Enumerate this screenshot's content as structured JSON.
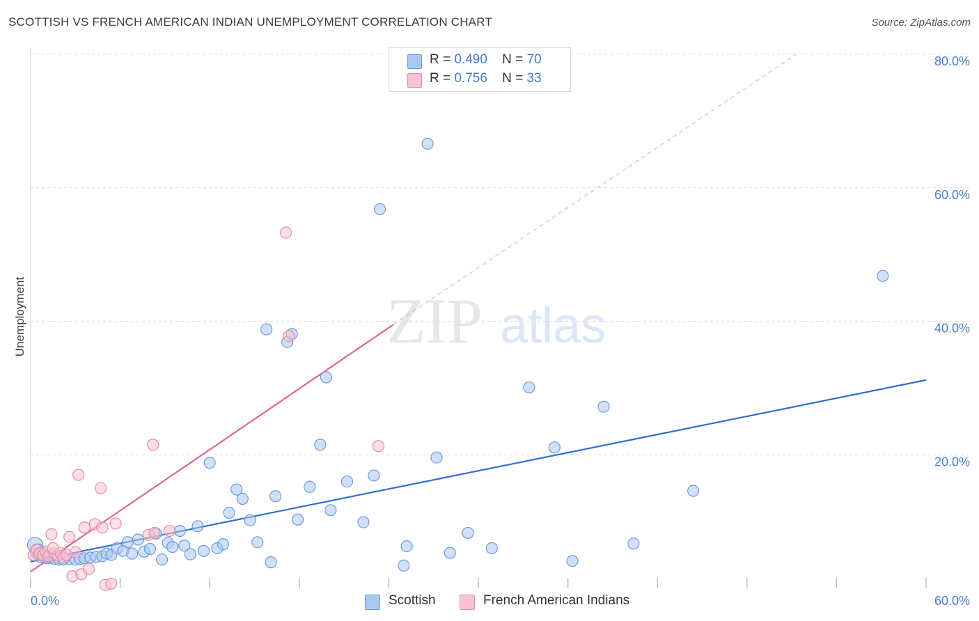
{
  "title": "SCOTTISH VS FRENCH AMERICAN INDIAN UNEMPLOYMENT CORRELATION CHART",
  "source": "Source: ZipAtlas.com",
  "watermark": {
    "zip": "ZIP",
    "atlas": "atlas"
  },
  "legend": {
    "r_label": "R =",
    "n_label": "N =",
    "rows": [
      {
        "r": "0.490",
        "n": "70",
        "color": "#a9c8f0",
        "border": "#6a9be0"
      },
      {
        "r": "0.756",
        "n": "33",
        "color": "#f8c3d2",
        "border": "#e88aa6"
      }
    ]
  },
  "bottom_legend": [
    "Scottish",
    "French American Indians"
  ],
  "chart_data": {
    "type": "scatter",
    "title": "SCOTTISH VS FRENCH AMERICAN INDIAN UNEMPLOYMENT CORRELATION CHART",
    "xlabel": "",
    "ylabel": "Unemployment",
    "xlim": [
      0,
      60
    ],
    "ylim": [
      0,
      80
    ],
    "x_tick_labels": [
      "0.0%",
      "60.0%"
    ],
    "y_tick_labels": [
      "20.0%",
      "40.0%",
      "60.0%",
      "80.0%"
    ],
    "y_ticks": [
      20,
      40,
      60,
      80
    ],
    "grid": true,
    "legend_position": "top-center",
    "series": [
      {
        "name": "Scottish",
        "color": "#6a9be0",
        "fill": "#a9c8f0",
        "points": [
          [
            0.3,
            6.5
          ],
          [
            0.5,
            5.5
          ],
          [
            0.7,
            5.0
          ],
          [
            0.9,
            4.8
          ],
          [
            1.1,
            4.5
          ],
          [
            1.3,
            4.6
          ],
          [
            1.6,
            4.4
          ],
          [
            1.9,
            4.3
          ],
          [
            2.2,
            4.3
          ],
          [
            2.6,
            4.4
          ],
          [
            3.0,
            4.3
          ],
          [
            3.3,
            4.4
          ],
          [
            3.6,
            4.5
          ],
          [
            4.0,
            4.6
          ],
          [
            4.4,
            4.7
          ],
          [
            4.8,
            4.8
          ],
          [
            5.1,
            5.2
          ],
          [
            5.4,
            5.0
          ],
          [
            5.8,
            6.0
          ],
          [
            6.2,
            5.6
          ],
          [
            6.5,
            6.9
          ],
          [
            6.8,
            5.2
          ],
          [
            7.2,
            7.3
          ],
          [
            7.6,
            5.5
          ],
          [
            8.0,
            5.9
          ],
          [
            8.4,
            8.2
          ],
          [
            8.8,
            4.3
          ],
          [
            9.2,
            6.8
          ],
          [
            9.5,
            6.2
          ],
          [
            10.0,
            8.6
          ],
          [
            10.3,
            6.4
          ],
          [
            10.7,
            5.1
          ],
          [
            11.2,
            9.3
          ],
          [
            11.6,
            5.6
          ],
          [
            12.0,
            18.8
          ],
          [
            12.5,
            6.0
          ],
          [
            12.9,
            6.6
          ],
          [
            13.3,
            11.3
          ],
          [
            13.8,
            14.8
          ],
          [
            14.2,
            13.4
          ],
          [
            14.7,
            10.2
          ],
          [
            15.2,
            6.9
          ],
          [
            15.8,
            38.8
          ],
          [
            16.1,
            3.9
          ],
          [
            16.4,
            13.8
          ],
          [
            17.2,
            36.9
          ],
          [
            17.5,
            38.1
          ],
          [
            17.9,
            10.3
          ],
          [
            18.7,
            15.2
          ],
          [
            19.4,
            21.5
          ],
          [
            19.8,
            31.6
          ],
          [
            20.1,
            11.7
          ],
          [
            21.2,
            16.0
          ],
          [
            22.3,
            9.9
          ],
          [
            23.0,
            16.9
          ],
          [
            23.4,
            56.8
          ],
          [
            25.0,
            3.4
          ],
          [
            25.2,
            6.3
          ],
          [
            26.6,
            66.6
          ],
          [
            27.2,
            19.6
          ],
          [
            28.1,
            5.3
          ],
          [
            29.3,
            8.3
          ],
          [
            30.9,
            6.0
          ],
          [
            33.4,
            30.1
          ],
          [
            35.1,
            21.1
          ],
          [
            36.3,
            4.1
          ],
          [
            38.4,
            27.2
          ],
          [
            40.4,
            6.7
          ],
          [
            44.4,
            14.6
          ],
          [
            57.1,
            46.8
          ]
        ],
        "trend": {
          "x0": 0,
          "y0": 4.0,
          "x1": 60,
          "y1": 31.2
        }
      },
      {
        "name": "French American Indians",
        "color": "#e88aa6",
        "fill": "#f8c3d2",
        "points": [
          [
            0.2,
            5.0
          ],
          [
            0.4,
            5.8
          ],
          [
            0.6,
            5.2
          ],
          [
            0.8,
            4.9
          ],
          [
            1.0,
            5.5
          ],
          [
            1.2,
            4.8
          ],
          [
            1.4,
            8.1
          ],
          [
            1.6,
            5.2
          ],
          [
            1.8,
            4.9
          ],
          [
            2.0,
            5.3
          ],
          [
            2.2,
            4.6
          ],
          [
            2.4,
            5.0
          ],
          [
            2.6,
            7.7
          ],
          [
            2.8,
            1.8
          ],
          [
            3.0,
            5.4
          ],
          [
            3.2,
            17.0
          ],
          [
            3.4,
            2.1
          ],
          [
            3.6,
            9.1
          ],
          [
            3.9,
            2.9
          ],
          [
            4.3,
            9.6
          ],
          [
            4.7,
            15.0
          ],
          [
            4.8,
            9.1
          ],
          [
            5.0,
            0.5
          ],
          [
            5.4,
            0.7
          ],
          [
            5.7,
            9.7
          ],
          [
            7.9,
            8.0
          ],
          [
            8.2,
            21.5
          ],
          [
            9.3,
            8.6
          ],
          [
            17.1,
            53.3
          ],
          [
            17.3,
            37.8
          ],
          [
            23.3,
            21.3
          ],
          [
            8.3,
            8.3
          ],
          [
            1.5,
            6.0
          ]
        ],
        "trend": {
          "x0": 0,
          "y0": 2.5,
          "x1": 24.3,
          "y1": 39.5
        },
        "trend_extension": {
          "x0": 24.3,
          "y0": 39.5,
          "x1": 51.3,
          "y1": 80
        }
      }
    ]
  }
}
